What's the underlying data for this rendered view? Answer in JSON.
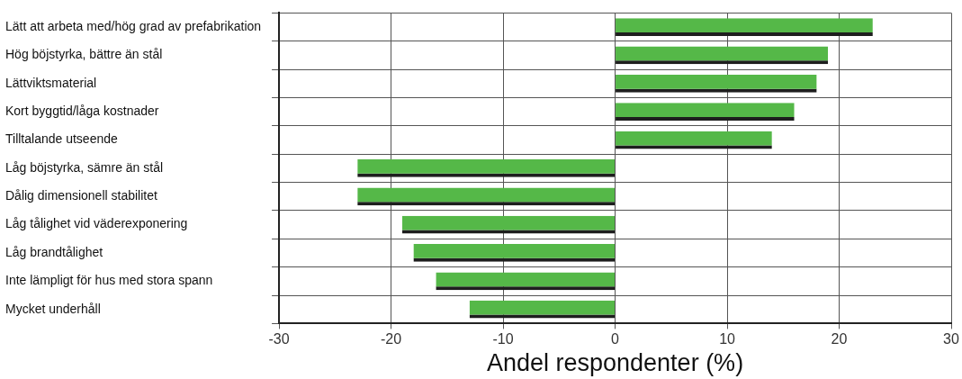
{
  "chart_data": {
    "type": "bar",
    "orientation": "horizontal",
    "xlabel": "Andel respondenter (%)",
    "categories": [
      "Lätt att arbeta med/hög grad av prefabrikation",
      "Hög böjstyrka, bättre än stål",
      "Lättviktsmaterial",
      "Kort byggtid/låga kostnader",
      "Tilltalande utseende",
      "Låg böjstyrka, sämre än stål",
      "Dålig dimensionell stabilitet",
      "Låg tålighet vid väderexponering",
      "Låg brandtålighet",
      "Inte lämpligt för hus med stora spann",
      "Mycket underhåll"
    ],
    "values": [
      23,
      19,
      18,
      16,
      14,
      -23,
      -23,
      -19,
      -18,
      -16,
      -13
    ],
    "color": "#55b848",
    "xlim": [
      -30,
      30
    ],
    "xticks": [
      -30,
      -20,
      -10,
      0,
      10,
      20,
      30
    ],
    "grid": true,
    "legend": false
  }
}
